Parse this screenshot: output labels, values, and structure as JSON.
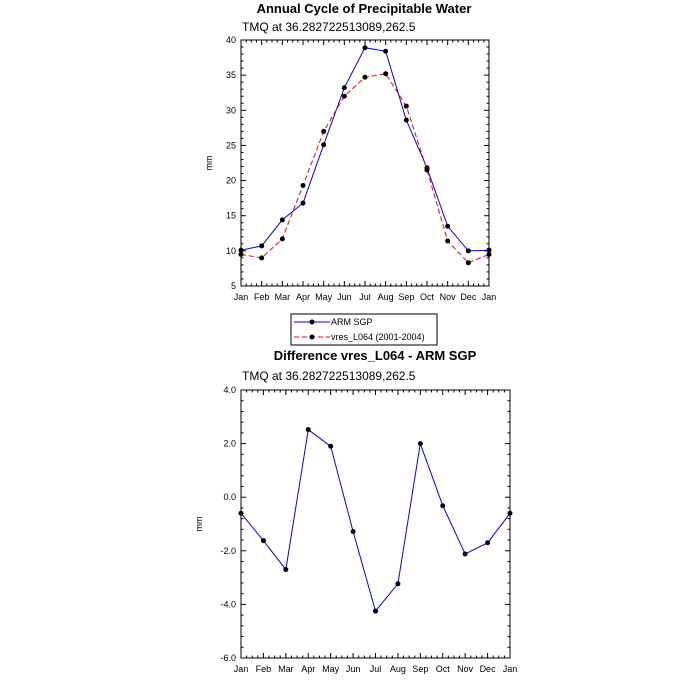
{
  "chart_data": [
    {
      "type": "line",
      "title": "Annual Cycle of Precipitable Water",
      "subtitle": "TMQ at 36.282722513089,262.5",
      "ylabel": "mm",
      "xlabel": "",
      "categories": [
        "Jan",
        "Feb",
        "Mar",
        "Apr",
        "May",
        "Jun",
        "Jul",
        "Aug",
        "Sep",
        "Oct",
        "Nov",
        "Dec",
        "Jan"
      ],
      "ylim": [
        5,
        40
      ],
      "yticks": [
        "5",
        "10",
        "15",
        "20",
        "25",
        "30",
        "35",
        "40"
      ],
      "series": [
        {
          "name": "ARM SGP",
          "color": "#0000ff",
          "style": "solid",
          "marker": "dot",
          "values": [
            10.1,
            10.7,
            14.4,
            16.8,
            25.1,
            33.2,
            38.9,
            38.4,
            28.6,
            21.8,
            13.5,
            10.0,
            10.1
          ]
        },
        {
          "name": "vres_L064 (2001-2004)",
          "color": "#ff0000",
          "style": "dashed",
          "marker": "dot",
          "values": [
            9.5,
            9.0,
            11.7,
            19.3,
            27.0,
            32.0,
            34.7,
            35.2,
            30.6,
            21.5,
            11.4,
            8.3,
            9.5
          ]
        }
      ],
      "legend": {
        "position": "bottom-center",
        "entries": [
          "ARM SGP",
          "vres_L064 (2001-2004)"
        ]
      },
      "grid": false
    },
    {
      "type": "line",
      "title": "Difference vres_L064 - ARM SGP",
      "subtitle": "TMQ at 36.282722513089,262.5",
      "ylabel": "mm",
      "xlabel": "",
      "categories": [
        "Jan",
        "Feb",
        "Mar",
        "Apr",
        "May",
        "Jun",
        "Jul",
        "Aug",
        "Sep",
        "Oct",
        "Nov",
        "Dec",
        "Jan"
      ],
      "ylim": [
        -6,
        4
      ],
      "yticks": [
        "-6.0",
        "-4.0",
        "-2.0",
        "0.0",
        "2.0",
        "4.0"
      ],
      "series": [
        {
          "color": "#0000ff",
          "style": "solid",
          "marker": "dot",
          "values": [
            -0.6,
            -1.62,
            -2.7,
            2.52,
            1.9,
            -1.28,
            -4.25,
            -3.23,
            2.0,
            -0.32,
            -2.12,
            -1.7,
            -0.6
          ]
        }
      ],
      "grid": false
    }
  ]
}
